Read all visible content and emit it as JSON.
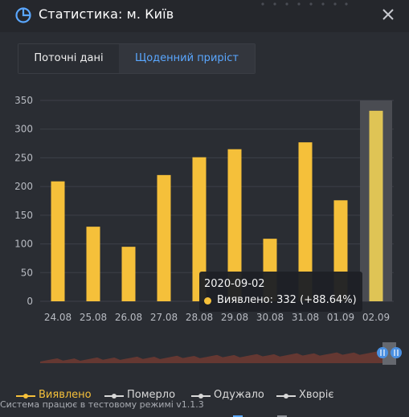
{
  "header": {
    "title": "Статистика: м. Київ",
    "icon": "pie-chart-icon",
    "close_icon": "close-icon"
  },
  "tabs": [
    {
      "label": "Поточні дані",
      "active": false
    },
    {
      "label": "Щоденний приріст",
      "active": true
    }
  ],
  "colors": {
    "accent": "#5aa7ff",
    "bar": "#f5c03a",
    "bar_highlight": "#dfc455",
    "background": "#2a2d33",
    "navigator": "#6b3a32"
  },
  "chart_data": {
    "type": "bar",
    "categories": [
      "24.08",
      "25.08",
      "26.08",
      "27.08",
      "28.08",
      "29.08",
      "30.08",
      "31.08",
      "01.09",
      "02.09"
    ],
    "values": [
      209,
      130,
      95,
      220,
      251,
      265,
      109,
      277,
      176,
      332
    ],
    "ylim": [
      0,
      350
    ],
    "yticks": [
      0,
      50,
      100,
      150,
      200,
      250,
      300,
      350
    ],
    "grid": true,
    "highlight_index": 9,
    "legend": [
      {
        "label": "Виявлено",
        "color": "#f5c03a",
        "active": true
      },
      {
        "label": "Померло",
        "color": "#d8d8d8",
        "active": false
      },
      {
        "label": "Одужало",
        "color": "#d8d8d8",
        "active": false
      },
      {
        "label": "Хворіє",
        "color": "#d8d8d8",
        "active": false
      }
    ],
    "legend_position": "bottom-left"
  },
  "tooltip": {
    "date": "2020-09-02",
    "text": "Виявлено: 332 (+88.64%)"
  },
  "footer": {
    "text": "Система працює в тестовому режимі v1.1.3"
  }
}
